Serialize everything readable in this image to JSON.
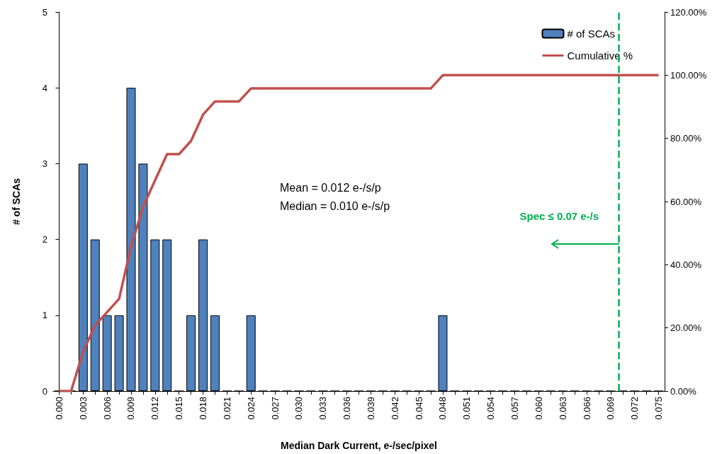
{
  "chart_data": {
    "type": "bar",
    "xlabel": "Median Dark Current, e-/sec/pixel",
    "ylabel": "# of SCAs",
    "x": [
      0,
      0.0015,
      0.003,
      0.0045,
      0.006,
      0.0075,
      0.009,
      0.0105,
      0.012,
      0.0135,
      0.015,
      0.0165,
      0.018,
      0.0195,
      0.021,
      0.0225,
      0.024,
      0.0255,
      0.027,
      0.0285,
      0.03,
      0.0315,
      0.033,
      0.0345,
      0.036,
      0.0375,
      0.039,
      0.0405,
      0.042,
      0.0435,
      0.045,
      0.0465,
      0.048,
      0.0495,
      0.051,
      0.0525,
      0.054,
      0.0555,
      0.057,
      0.0585,
      0.06,
      0.0615,
      0.063,
      0.0645,
      0.066,
      0.0675,
      0.069,
      0.0705,
      0.072,
      0.0735,
      0.075
    ],
    "xlim": [
      -0.00075,
      0.07575
    ],
    "xticks": [
      {
        "value": 0,
        "label": "0.000"
      },
      {
        "value": 0.0015,
        "label": null
      },
      {
        "value": 0.003,
        "label": "0.003"
      },
      {
        "value": 0.0045,
        "label": null
      },
      {
        "value": 0.006,
        "label": "0.006"
      },
      {
        "value": 0.0075,
        "label": null
      },
      {
        "value": 0.009,
        "label": "0.009"
      },
      {
        "value": 0.0105,
        "label": null
      },
      {
        "value": 0.012,
        "label": "0.012"
      },
      {
        "value": 0.0135,
        "label": null
      },
      {
        "value": 0.015,
        "label": "0.015"
      },
      {
        "value": 0.0165,
        "label": null
      },
      {
        "value": 0.018,
        "label": "0.018"
      },
      {
        "value": 0.0195,
        "label": null
      },
      {
        "value": 0.021,
        "label": "0.021"
      },
      {
        "value": 0.0225,
        "label": null
      },
      {
        "value": 0.024,
        "label": "0.024"
      },
      {
        "value": 0.0255,
        "label": null
      },
      {
        "value": 0.027,
        "label": "0.027"
      },
      {
        "value": 0.0285,
        "label": null
      },
      {
        "value": 0.03,
        "label": "0.030"
      },
      {
        "value": 0.0315,
        "label": null
      },
      {
        "value": 0.033,
        "label": "0.033"
      },
      {
        "value": 0.0345,
        "label": null
      },
      {
        "value": 0.036,
        "label": "0.036"
      },
      {
        "value": 0.0375,
        "label": null
      },
      {
        "value": 0.039,
        "label": "0.039"
      },
      {
        "value": 0.0405,
        "label": null
      },
      {
        "value": 0.042,
        "label": "0.042"
      },
      {
        "value": 0.0435,
        "label": null
      },
      {
        "value": 0.045,
        "label": "0.045"
      },
      {
        "value": 0.0465,
        "label": null
      },
      {
        "value": 0.048,
        "label": "0.048"
      },
      {
        "value": 0.0495,
        "label": null
      },
      {
        "value": 0.051,
        "label": "0.051"
      },
      {
        "value": 0.0525,
        "label": null
      },
      {
        "value": 0.054,
        "label": "0.054"
      },
      {
        "value": 0.0555,
        "label": null
      },
      {
        "value": 0.057,
        "label": "0.057"
      },
      {
        "value": 0.0585,
        "label": null
      },
      {
        "value": 0.06,
        "label": "0.060"
      },
      {
        "value": 0.0615,
        "label": null
      },
      {
        "value": 0.063,
        "label": "0.063"
      },
      {
        "value": 0.0645,
        "label": null
      },
      {
        "value": 0.066,
        "label": "0.066"
      },
      {
        "value": 0.0675,
        "label": null
      },
      {
        "value": 0.069,
        "label": "0.069"
      },
      {
        "value": 0.0705,
        "label": null
      },
      {
        "value": 0.072,
        "label": "0.072"
      },
      {
        "value": 0.0735,
        "label": null
      },
      {
        "value": 0.075,
        "label": "0.075"
      }
    ],
    "series": [
      {
        "name": "# of SCAs",
        "color": "#4f81bd",
        "values": [
          0,
          0,
          3,
          2,
          1,
          1,
          4,
          3,
          2,
          2,
          0,
          1,
          2,
          1,
          0,
          0,
          1,
          0,
          0,
          0,
          0,
          0,
          0,
          0,
          0,
          0,
          0,
          0,
          0,
          0,
          0,
          0,
          1,
          0,
          0,
          0,
          0,
          0,
          0,
          0,
          0,
          0,
          0,
          0,
          0,
          0,
          0,
          0,
          0,
          0,
          0
        ]
      },
      {
        "name": "Cumulative %",
        "type": "line",
        "axis": "y2",
        "color": "#c0504d",
        "values": [
          0,
          0,
          12.5,
          20.8,
          25,
          29.2,
          45.8,
          58.3,
          66.7,
          75,
          75,
          79.2,
          87.5,
          91.7,
          91.7,
          91.7,
          95.8,
          95.8,
          95.8,
          95.8,
          95.8,
          95.8,
          95.8,
          95.8,
          95.8,
          95.8,
          95.8,
          95.8,
          95.8,
          95.8,
          95.8,
          95.8,
          100,
          100,
          100,
          100,
          100,
          100,
          100,
          100,
          100,
          100,
          100,
          100,
          100,
          100,
          100,
          100,
          100,
          100,
          100
        ]
      }
    ],
    "ylim": [
      0,
      5
    ],
    "yticks": [
      0,
      1,
      2,
      3,
      4,
      5
    ],
    "y2lim": [
      0,
      120
    ],
    "y2ticks": [
      {
        "value": 0,
        "label": "0.00%"
      },
      {
        "value": 20,
        "label": "20.00%"
      },
      {
        "value": 40,
        "label": "40.00%"
      },
      {
        "value": 60,
        "label": "60.00%"
      },
      {
        "value": 80,
        "label": "80.00%"
      },
      {
        "value": 100,
        "label": "100.00%"
      },
      {
        "value": 120,
        "label": "120.00%"
      }
    ],
    "ref_lines": [
      {
        "axis": "x",
        "value": 0.07,
        "label": "Spec ≤ 0.07 e-/s",
        "color": "#00b050",
        "line_style": "dashed"
      }
    ],
    "annotations": [
      "Mean = 0.012 e-/s/p",
      "Median = 0.010 e-/s/p"
    ],
    "legend": "top right",
    "grid": false,
    "marker": "none"
  }
}
